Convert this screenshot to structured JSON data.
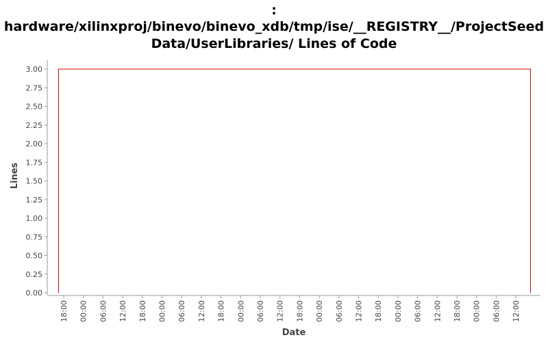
{
  "chart_data": {
    "type": "line",
    "title_lines": [
      ":",
      "hardware/xilinxproj/binevo/binevo_xdb/tmp/ise/__REGISTRY__/ProjectSeed",
      "Data/UserLibraries/ Lines of Code"
    ],
    "xlabel": "Date",
    "ylabel": "Lines",
    "ylim": [
      0,
      3
    ],
    "y_ticks": [
      "0.00",
      "0.25",
      "0.50",
      "0.75",
      "1.00",
      "1.25",
      "1.50",
      "1.75",
      "2.00",
      "2.25",
      "2.50",
      "2.75",
      "3.00"
    ],
    "x_ticks": [
      "18:00",
      "00:00",
      "06:00",
      "12:00",
      "18:00",
      "00:00",
      "06:00",
      "12:00",
      "18:00",
      "00:00",
      "06:00",
      "12:00",
      "18:00",
      "00:00",
      "06:00",
      "12:00",
      "18:00",
      "00:00",
      "06:00",
      "12:00",
      "18:00",
      "00:00",
      "06:00",
      "12:00"
    ],
    "series": [
      {
        "color": "#cc0000",
        "points": [
          {
            "x": "18:00",
            "y": 0
          },
          {
            "x": "18:00",
            "y": 3
          },
          {
            "x": "12:00",
            "y": 3
          },
          {
            "x": "12:00",
            "y": 0
          }
        ]
      }
    ],
    "grid": false,
    "legend": "none"
  }
}
